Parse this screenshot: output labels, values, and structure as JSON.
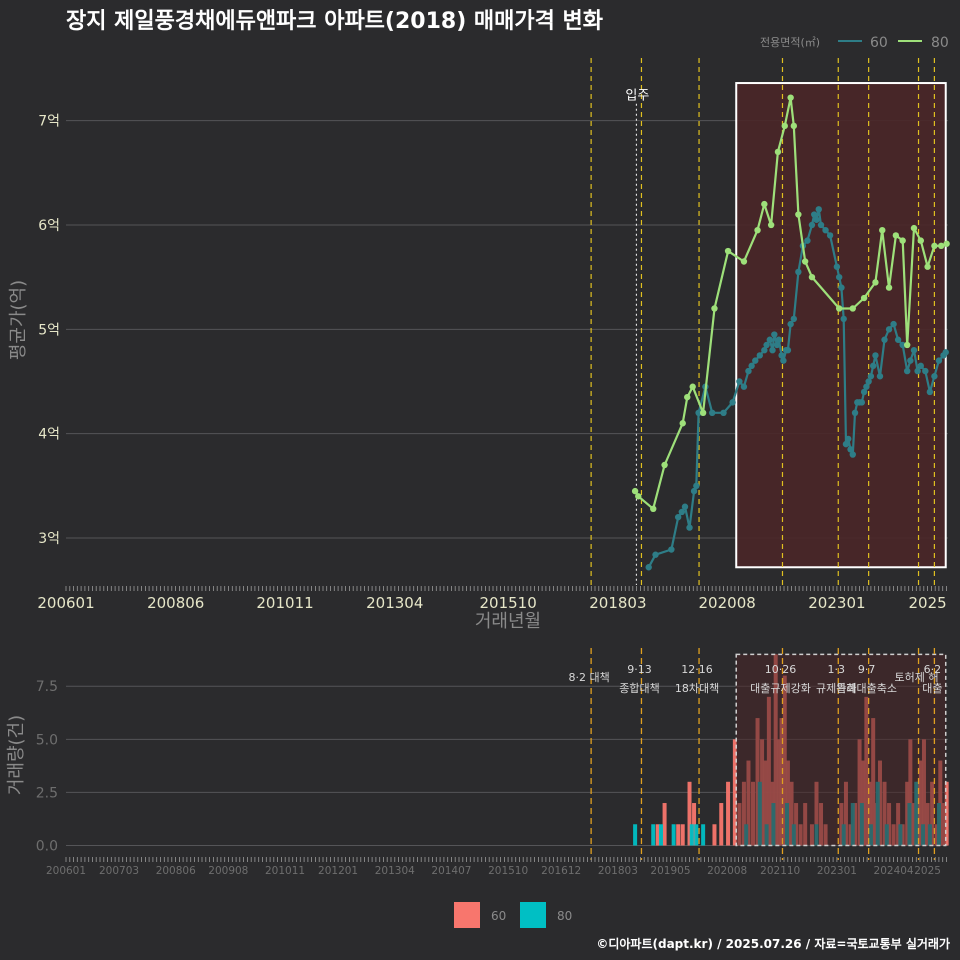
{
  "colors": {
    "background": "#2b2b2d",
    "grid": "#555558",
    "series_60_line": "#2e7d87",
    "series_80_line": "#9ee07a",
    "bar_60": "#f8766d",
    "bar_80": "#00bfc4",
    "event_line": "#e0c020",
    "highlight_fill": "#4a2628",
    "highlight_border": "#ffffff",
    "text": "#ffffff",
    "axis_text": "#e6e6c8",
    "muted_text": "#8a8a8a"
  },
  "chart_data": [
    {
      "type": "line",
      "title": "장지 제일풍경채에듀앤파크 아파트(2018) 매매가격 변화",
      "xlabel": "거래년월",
      "ylabel": "평균가(억)",
      "legend_title": "전용면적(㎡)",
      "legend_position": "top-right",
      "x_ticks": [
        "200601",
        "200806",
        "201011",
        "201304",
        "201510",
        "201803",
        "202008",
        "202301",
        "2025"
      ],
      "x_tick_values": [
        2006.0,
        2008.42,
        2010.83,
        2013.25,
        2015.75,
        2018.17,
        2020.58,
        2023.0,
        2025.0
      ],
      "xlim": [
        2006.0,
        2025.45
      ],
      "y_ticks": [
        "3억",
        "4억",
        "5억",
        "6억",
        "7억"
      ],
      "y_tick_values": [
        3,
        4,
        5,
        6,
        7
      ],
      "ylim": [
        2.55,
        7.6
      ],
      "event_lines": [
        2017.58,
        2018.69,
        2019.96,
        2021.8,
        2023.03,
        2023.7,
        2024.8,
        2025.15
      ],
      "annotation": {
        "label": "입주",
        "x": 2018.6,
        "y": 7.2
      },
      "highlight_range": {
        "x": [
          2020.78,
          2025.4
        ],
        "y": [
          2.72,
          7.36
        ]
      },
      "series": [
        {
          "name": "60",
          "x": [
            2018.85,
            2019.0,
            2019.35,
            2019.5,
            2019.58,
            2019.65,
            2019.75,
            2019.85,
            2019.9,
            2019.95,
            2020.1,
            2020.25,
            2020.5,
            2020.7,
            2020.85,
            2020.95,
            2021.05,
            2021.12,
            2021.2,
            2021.3,
            2021.4,
            2021.45,
            2021.52,
            2021.58,
            2021.62,
            2021.68,
            2021.72,
            2021.78,
            2021.82,
            2021.88,
            2021.92,
            2021.98,
            2022.05,
            2022.15,
            2022.25,
            2022.35,
            2022.45,
            2022.5,
            2022.55,
            2022.6,
            2022.65,
            2022.75,
            2022.85,
            2023.0,
            2023.05,
            2023.1,
            2023.15,
            2023.2,
            2023.25,
            2023.3,
            2023.35,
            2023.4,
            2023.45,
            2023.5,
            2023.55,
            2023.6,
            2023.65,
            2023.7,
            2023.75,
            2023.8,
            2023.85,
            2023.95,
            2024.05,
            2024.15,
            2024.25,
            2024.35,
            2024.45,
            2024.55,
            2024.62,
            2024.7,
            2024.78,
            2024.85,
            2024.95,
            2025.05,
            2025.15,
            2025.25,
            2025.35,
            2025.4
          ],
          "y": [
            2.72,
            2.84,
            2.89,
            3.2,
            3.25,
            3.3,
            3.1,
            3.45,
            3.5,
            4.2,
            4.45,
            4.2,
            4.2,
            4.3,
            4.5,
            4.45,
            4.6,
            4.65,
            4.7,
            4.75,
            4.8,
            4.85,
            4.9,
            4.8,
            4.95,
            4.85,
            4.9,
            4.75,
            4.7,
            4.8,
            4.8,
            5.05,
            5.1,
            5.55,
            5.8,
            5.85,
            6.0,
            6.1,
            6.05,
            6.15,
            6.0,
            5.95,
            5.9,
            5.6,
            5.5,
            5.4,
            5.1,
            3.9,
            3.95,
            3.85,
            3.8,
            4.2,
            4.3,
            4.3,
            4.3,
            4.4,
            4.45,
            4.5,
            4.55,
            4.65,
            4.75,
            4.55,
            4.9,
            5.0,
            5.05,
            4.9,
            4.85,
            4.6,
            4.7,
            4.8,
            4.6,
            4.65,
            4.6,
            4.4,
            4.55,
            4.7,
            4.75,
            4.78
          ]
        },
        {
          "name": "80",
          "x": [
            2018.55,
            2018.62,
            2018.95,
            2019.2,
            2019.6,
            2019.7,
            2019.82,
            2020.05,
            2020.3,
            2020.6,
            2020.95,
            2021.25,
            2021.4,
            2021.55,
            2021.7,
            2021.85,
            2021.98,
            2022.05,
            2022.15,
            2022.3,
            2022.45,
            2023.05,
            2023.35,
            2023.6,
            2023.85,
            2024.0,
            2024.15,
            2024.3,
            2024.45,
            2024.55,
            2024.7,
            2024.85,
            2025.0,
            2025.15,
            2025.3,
            2025.42
          ],
          "y": [
            3.45,
            3.4,
            3.28,
            3.7,
            4.1,
            4.35,
            4.45,
            4.2,
            5.2,
            5.75,
            5.65,
            5.95,
            6.2,
            6.0,
            6.7,
            6.95,
            7.22,
            6.95,
            6.1,
            5.65,
            5.5,
            5.2,
            5.2,
            5.3,
            5.45,
            5.95,
            5.4,
            5.9,
            5.85,
            4.85,
            5.97,
            5.85,
            5.6,
            5.8,
            5.8,
            5.82
          ]
        }
      ]
    },
    {
      "type": "bar",
      "xlabel": "",
      "ylabel": "거래량(건)",
      "x_ticks": [
        "200601",
        "200703",
        "200806",
        "200908",
        "201011",
        "201201",
        "201304",
        "201407",
        "201510",
        "201612",
        "201803",
        "201905",
        "202008",
        "202110",
        "202301",
        "202404",
        "2025"
      ],
      "x_tick_values": [
        2006.0,
        2007.17,
        2008.42,
        2009.58,
        2010.83,
        2012.0,
        2013.25,
        2014.5,
        2015.75,
        2016.92,
        2018.17,
        2019.33,
        2020.58,
        2021.75,
        2023.0,
        2024.25,
        2025.0
      ],
      "xlim": [
        2006.0,
        2025.45
      ],
      "y_ticks": [
        "0.0",
        "2.5",
        "5.0",
        "7.5"
      ],
      "y_tick_values": [
        0,
        2.5,
        5.0,
        7.5
      ],
      "ylim": [
        -0.4,
        9.3
      ],
      "event_lines": [
        {
          "x": 2017.58,
          "labels": [
            "8·2 대책"
          ]
        },
        {
          "x": 2018.69,
          "labels": [
            "9·13",
            "종합대책"
          ]
        },
        {
          "x": 2019.96,
          "labels": [
            "12·16",
            "18차대책"
          ]
        },
        {
          "x": 2021.8,
          "labels": [
            "10·26",
            "대출규제강화"
          ]
        },
        {
          "x": 2023.03,
          "labels": [
            "1·3",
            "규제완화"
          ]
        },
        {
          "x": 2023.7,
          "labels": [
            "9·7",
            "특례대출축소"
          ]
        },
        {
          "x": 2024.8,
          "labels": [
            "토허제 해"
          ]
        },
        {
          "x": 2025.15,
          "labels": [
            "6·2",
            "대출"
          ]
        }
      ],
      "highlight_range": {
        "x": [
          2020.78,
          2025.4
        ],
        "y": [
          0,
          9.0
        ]
      },
      "series": [
        {
          "name": "60",
          "x": [
            2019.05,
            2019.2,
            2019.5,
            2019.6,
            2019.75,
            2019.85,
            2020.3,
            2020.45,
            2020.6,
            2020.75,
            2020.85,
            2020.95,
            2021.05,
            2021.15,
            2021.25,
            2021.35,
            2021.42,
            2021.5,
            2021.58,
            2021.65,
            2021.72,
            2021.78,
            2021.85,
            2021.92,
            2022.0,
            2022.1,
            2022.2,
            2022.3,
            2022.45,
            2022.55,
            2022.65,
            2022.75,
            2023.1,
            2023.2,
            2023.3,
            2023.4,
            2023.5,
            2023.58,
            2023.65,
            2023.72,
            2023.8,
            2023.88,
            2023.95,
            2024.05,
            2024.15,
            2024.25,
            2024.35,
            2024.45,
            2024.55,
            2024.62,
            2024.7,
            2024.78,
            2024.85,
            2024.92,
            2025.0,
            2025.1,
            2025.2,
            2025.28,
            2025.35,
            2025.42
          ],
          "y": [
            1,
            2,
            1,
            1,
            3,
            2,
            1,
            2,
            3,
            5,
            2,
            3,
            4,
            3,
            6,
            5,
            4,
            7,
            3,
            9,
            5,
            6,
            8,
            4,
            3,
            2,
            1,
            2,
            1,
            3,
            2,
            1,
            2,
            3,
            1,
            2,
            5,
            4,
            7,
            3,
            6,
            2,
            4,
            3,
            2,
            1,
            2,
            1,
            3,
            5,
            2,
            3,
            4,
            5,
            2,
            3,
            1,
            4,
            2,
            3
          ]
        },
        {
          "name": "80",
          "x": [
            2018.55,
            2018.95,
            2019.12,
            2019.4,
            2019.8,
            2019.9,
            2020.05,
            2021.0,
            2021.3,
            2021.45,
            2021.6,
            2021.9,
            2022.05,
            2022.55,
            2023.15,
            2023.35,
            2023.55,
            2023.75,
            2023.9,
            2024.1,
            2024.4,
            2024.6,
            2024.75,
            2024.9,
            2025.05,
            2025.25
          ],
          "y": [
            1,
            1,
            1,
            1,
            1,
            1,
            1,
            1,
            3,
            1,
            2,
            2,
            1,
            1,
            1,
            2,
            2,
            1,
            3,
            1,
            1,
            2,
            3,
            1,
            1,
            2
          ]
        }
      ]
    }
  ],
  "footer": {
    "credit": "©디아파트(dapt.kr) / 2025.07.26 / 자료=국토교통부 실거래가"
  }
}
